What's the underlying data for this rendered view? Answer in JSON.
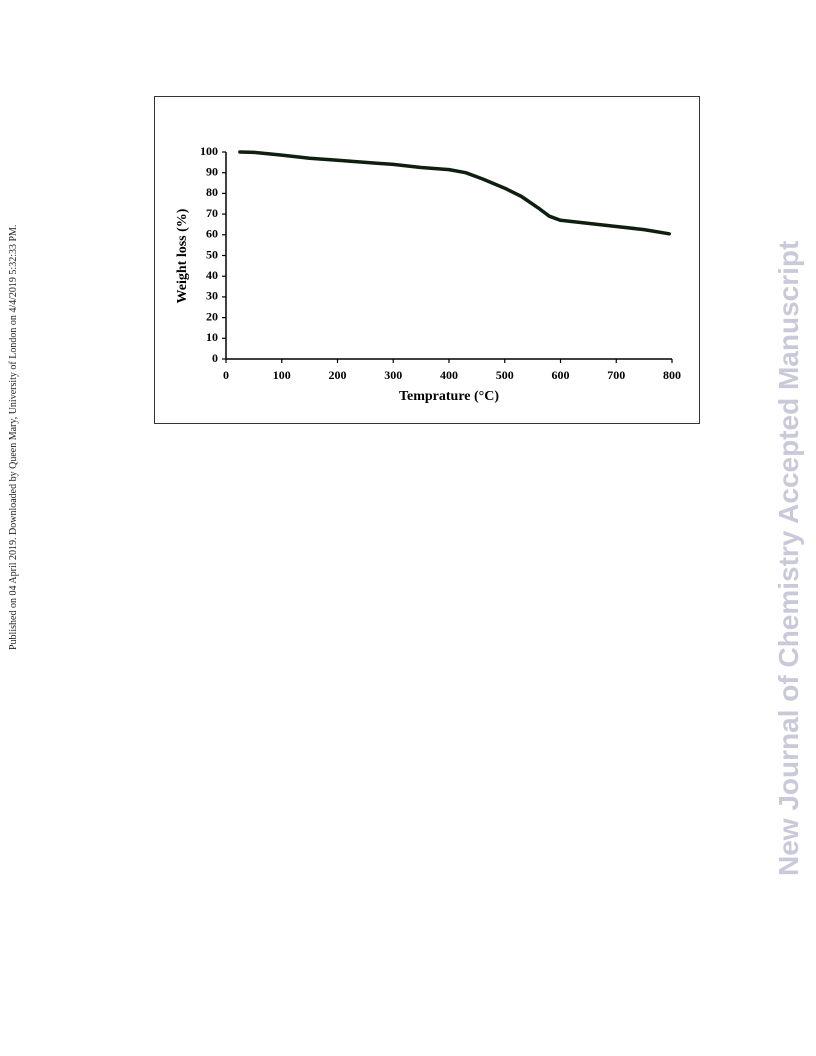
{
  "side_note": "Published on 04 April 2019. Downloaded by Queen Mary, University of London on 4/4/2019 5:32:33 PM.",
  "watermark": "New Journal of Chemistry Accepted Manuscript",
  "chart_data": {
    "type": "line",
    "x_label": "Temprature  (°C)",
    "y_label": "Weight loss (%)",
    "x": [
      25,
      50,
      100,
      150,
      200,
      250,
      300,
      350,
      400,
      430,
      460,
      500,
      530,
      560,
      580,
      600,
      650,
      700,
      750,
      795
    ],
    "series": [
      {
        "color": "#0f1f0f",
        "values": [
          100,
          99.8,
          98.5,
          97,
          96,
          95,
          94,
          92.5,
          91.5,
          90,
          87,
          82.5,
          78.5,
          73,
          69,
          67,
          65.5,
          64,
          62.5,
          60.5
        ]
      }
    ],
    "xlim": [
      0,
      800
    ],
    "xticks": [
      0,
      100,
      200,
      300,
      400,
      500,
      600,
      700,
      800
    ],
    "ylim": [
      0,
      100
    ],
    "yticks": [
      0,
      10,
      20,
      30,
      40,
      50,
      60,
      70,
      80,
      90,
      100
    ],
    "grid": false
  }
}
